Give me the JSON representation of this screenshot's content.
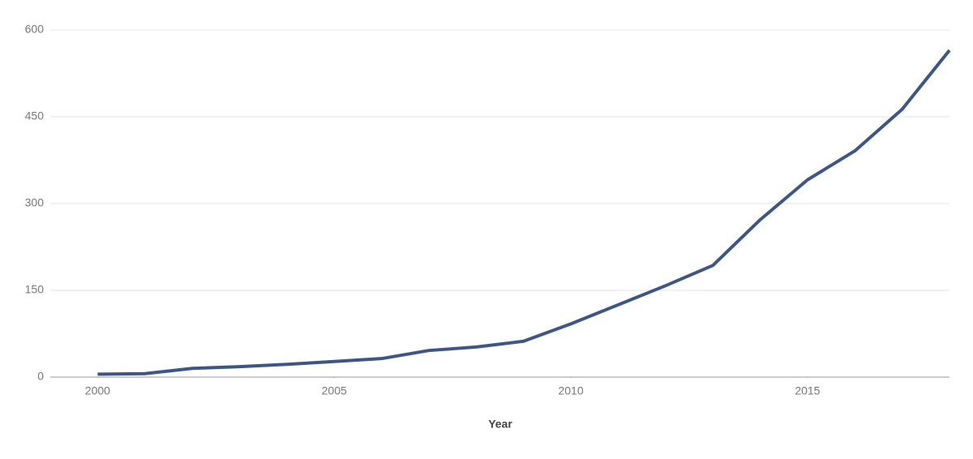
{
  "chart_data": {
    "type": "line",
    "x_label": "Year",
    "x": [
      2000,
      2001,
      2002,
      2003,
      2004,
      2005,
      2006,
      2007,
      2008,
      2009,
      2010,
      2011,
      2012,
      2013,
      2014,
      2015,
      2016,
      2017,
      2018
    ],
    "series": [
      {
        "color": "#3e5687",
        "values": [
          5,
          6,
          15,
          18,
          22,
          27,
          32,
          46,
          52,
          62,
          92,
          125,
          158,
          193,
          272,
          341,
          391,
          463,
          565
        ]
      }
    ],
    "xlim": [
      1999,
      2018
    ],
    "xticks": [
      2000,
      2005,
      2010,
      2015
    ],
    "ylim": [
      0,
      600
    ],
    "yticks": [
      0,
      150,
      300,
      450,
      600
    ],
    "grid": true
  }
}
